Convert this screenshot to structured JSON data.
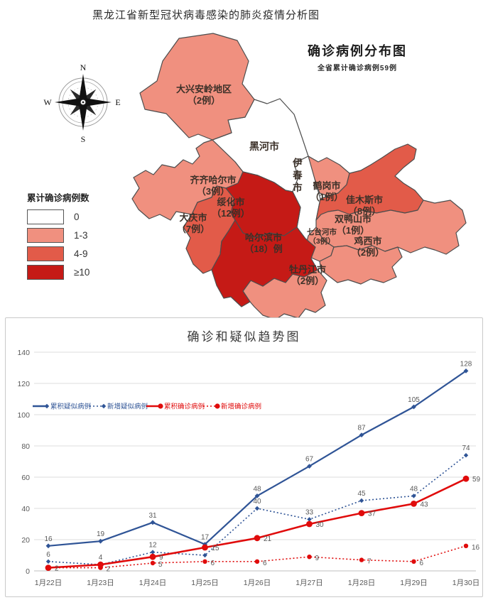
{
  "page_title": "黑龙江省新型冠状病毒感染的肺炎疫情分析图",
  "map": {
    "title": "确诊病例分布图",
    "subtitle": "全省累计确诊病例59例",
    "compass": {
      "n": "N",
      "e": "E",
      "s": "S",
      "w": "W"
    },
    "legend": {
      "title": "累计确诊病例数",
      "items": [
        {
          "label": "0",
          "color": "#ffffff"
        },
        {
          "label": "1-3",
          "color": "#f0907f"
        },
        {
          "label": "4-9",
          "color": "#e25b49"
        },
        {
          "label": "≥10",
          "color": "#c51a16"
        }
      ]
    },
    "level_colors": {
      "0": "#ffffff",
      "1-3": "#f0907f",
      "4-9": "#e25b49",
      "≥10": "#c51a16"
    },
    "regions": [
      {
        "name": "大兴安岭地区",
        "cases": "（2例）",
        "level": "1-3"
      },
      {
        "name": "黑河市",
        "cases": "",
        "level": "0"
      },
      {
        "name": "伊春市",
        "cases": "",
        "level": "0"
      },
      {
        "name": "齐齐哈尔市",
        "cases": "（3例）",
        "level": "1-3"
      },
      {
        "name": "大庆市",
        "cases": "（7例）",
        "level": "4-9"
      },
      {
        "name": "绥化市",
        "cases": "（12例）",
        "level": "≥10"
      },
      {
        "name": "哈尔滨市",
        "cases": "（18）例",
        "level": "≥10"
      },
      {
        "name": "鹤岗市",
        "cases": "（1例）",
        "level": "1-3"
      },
      {
        "name": "佳木斯市",
        "cases": "（8例）",
        "level": "4-9"
      },
      {
        "name": "双鸭山市",
        "cases": "（1例）",
        "level": "1-3"
      },
      {
        "name": "七台河市",
        "cases": "（3例）",
        "level": "1-3"
      },
      {
        "name": "鸡西市",
        "cases": "（2例）",
        "level": "1-3"
      },
      {
        "name": "牡丹江市",
        "cases": "（2例）",
        "level": "1-3"
      }
    ]
  },
  "chart_data": {
    "type": "line",
    "title": "确诊和疑似趋势图",
    "categories": [
      "1月22日",
      "1月23日",
      "1月24日",
      "1月25日",
      "1月26日",
      "1月27日",
      "1月28日",
      "1月29日",
      "1月30日"
    ],
    "ylim": [
      0,
      140
    ],
    "ytick_step": 20,
    "grid": true,
    "legend_position": "inside-top-left",
    "series": [
      {
        "name": "累积疑似病例",
        "color": "#2f5496",
        "style": "solid",
        "marker": "diamond",
        "values": [
          16,
          19,
          31,
          17,
          48,
          67,
          87,
          105,
          128
        ],
        "labels": [
          "16",
          "19",
          "31",
          "17",
          "48",
          "67",
          "87",
          "105",
          "128"
        ]
      },
      {
        "name": "新增疑似病例",
        "color": "#2f5496",
        "style": "dotted",
        "marker": "diamond",
        "values": [
          6,
          4,
          12,
          10,
          40,
          33,
          45,
          48,
          74
        ],
        "labels": [
          "6",
          "4",
          "12",
          "",
          "40",
          "33",
          "45",
          "48",
          "74"
        ]
      },
      {
        "name": "累积确诊病例",
        "color": "#e00b0b",
        "style": "solid",
        "marker": "circle",
        "values": [
          2,
          4,
          9,
          15,
          21,
          30,
          37,
          43,
          59
        ],
        "labels": [
          "2",
          "",
          "9",
          "15",
          "21",
          "30",
          "37",
          "43",
          "59"
        ]
      },
      {
        "name": "新增确诊病例",
        "color": "#e00b0b",
        "style": "dotted",
        "marker": "circle",
        "values": [
          2,
          2,
          5,
          6,
          6,
          9,
          7,
          6,
          16
        ],
        "labels": [
          "",
          "2",
          "5",
          "6",
          "6",
          "9",
          "7",
          "6",
          "16"
        ]
      }
    ]
  }
}
